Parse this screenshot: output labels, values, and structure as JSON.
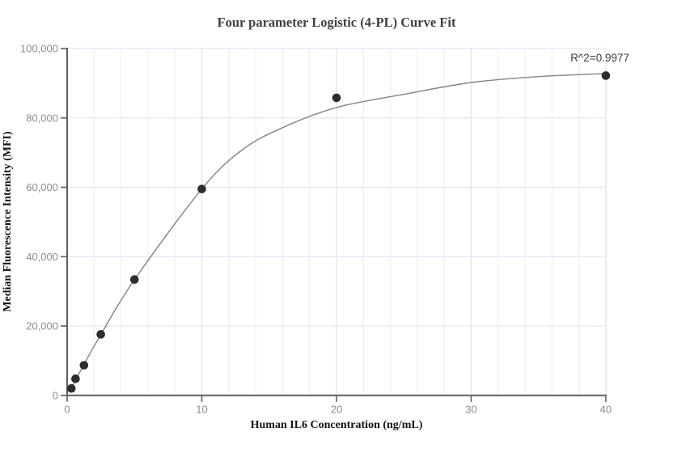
{
  "chart_data": {
    "type": "scatter",
    "title": "Four parameter Logistic (4-PL) Curve Fit",
    "xlabel": "Human IL6 Concentration (ng/mL)",
    "ylabel": "Median Fluorescence Intensity (MFI)",
    "annotation": "R^2=0.9977",
    "xlim": [
      0,
      40
    ],
    "ylim": [
      0,
      100000
    ],
    "x_ticks": [
      0,
      10,
      20,
      30,
      40
    ],
    "x_tick_labels": [
      "0",
      "10",
      "20",
      "30",
      "40"
    ],
    "y_ticks": [
      0,
      20000,
      40000,
      60000,
      80000,
      100000
    ],
    "y_tick_labels": [
      "0",
      "20,000",
      "40,000",
      "60,000",
      "80,000",
      "100,000"
    ],
    "x_minor_grid_step": 2,
    "grid": true,
    "legend_position": "none",
    "series": [
      {
        "name": "standard-points",
        "type": "scatter",
        "x": [
          0.313,
          0.625,
          1.25,
          2.5,
          5,
          10,
          20,
          40
        ],
        "y": [
          2000,
          4800,
          8700,
          17600,
          33400,
          59500,
          85800,
          92200
        ]
      },
      {
        "name": "4pl-fit-curve",
        "type": "line",
        "x": [
          0.31,
          0.625,
          1.25,
          2.5,
          5,
          10,
          13,
          16,
          20,
          25,
          30,
          35,
          40
        ],
        "y": [
          1500,
          4400,
          8900,
          17500,
          33400,
          59500,
          70800,
          77200,
          83000,
          86800,
          90200,
          91900,
          92800
        ]
      }
    ],
    "colors": {
      "point": "#2d2d2f",
      "curve": "#838388",
      "axis": "#5b5e66",
      "grid_horizontal": "#e1e6f3",
      "grid_vertical_minor": "#eceff8",
      "grid_vertical_major": "#dde3f1",
      "tick_label": "#8a8c92",
      "title": "#3d3f42",
      "annotation": "#3c4043"
    }
  }
}
